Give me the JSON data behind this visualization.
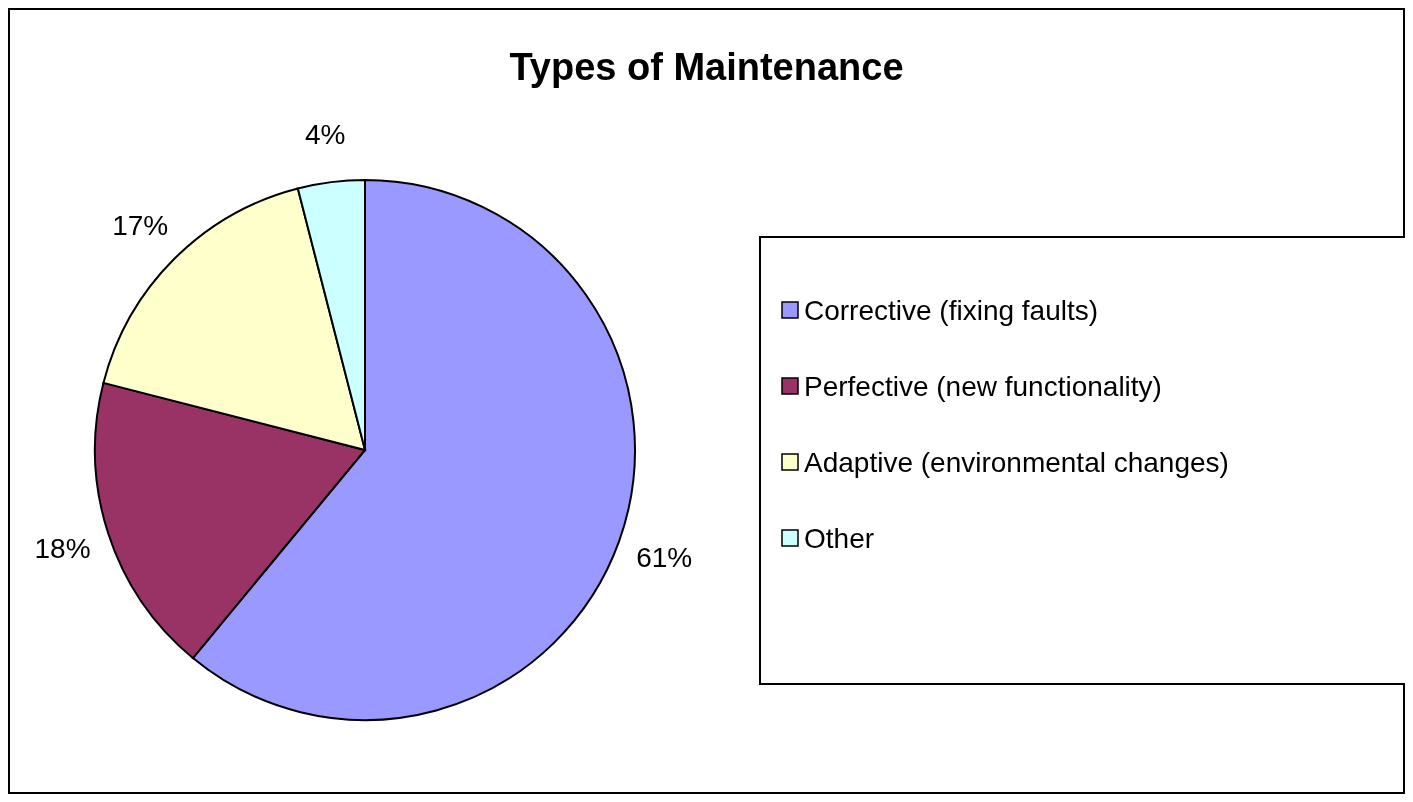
{
  "chart_data": {
    "type": "pie",
    "title": "Types of Maintenance",
    "categories": [
      "Corrective (fixing faults)",
      "Perfective (new functionality)",
      "Adaptive (environmental changes)",
      "Other"
    ],
    "values": [
      61,
      18,
      17,
      4
    ],
    "colors": [
      "#9999ff",
      "#993366",
      "#ffffcc",
      "#ccffff"
    ],
    "value_labels": [
      "61%",
      "18%",
      "17%",
      "4%"
    ],
    "legend": "right"
  }
}
